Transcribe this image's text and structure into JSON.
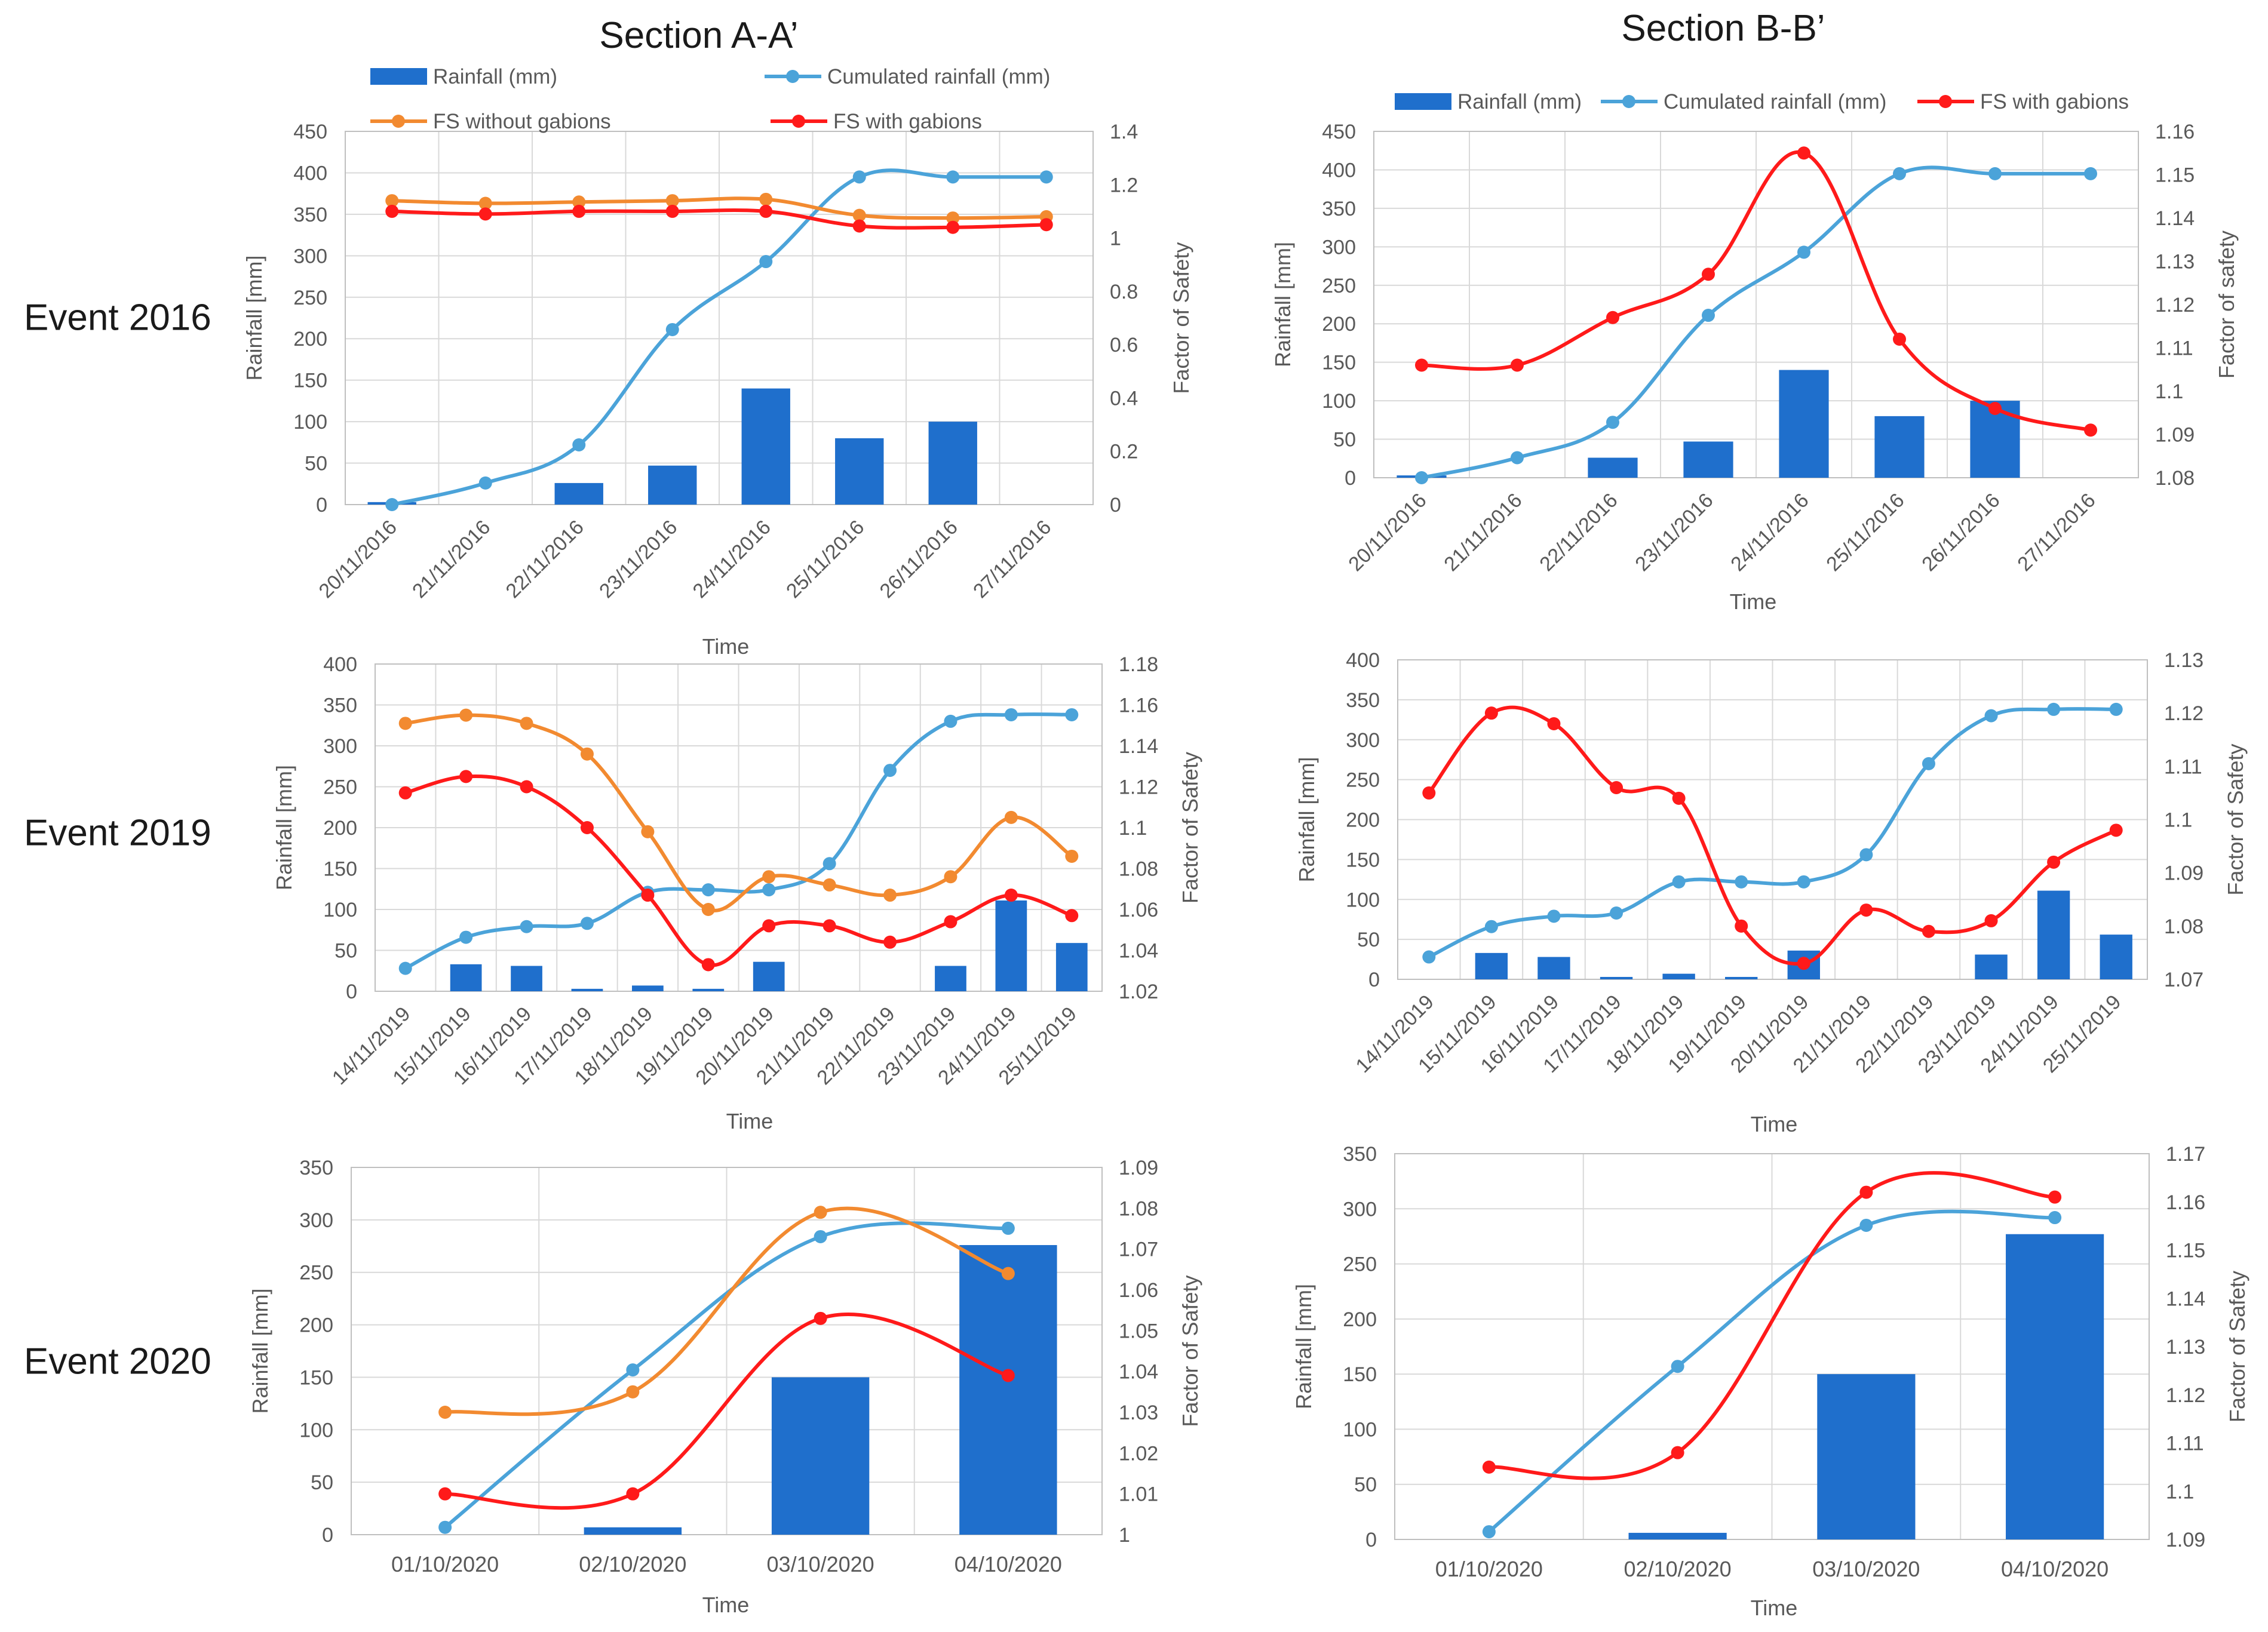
{
  "figure": {
    "section_titles": [
      "Section A-A’",
      "Section B-B’"
    ],
    "event_labels": [
      "Event 2016",
      "Event 2019",
      "Event 2020"
    ]
  },
  "colors": {
    "rainfall": "#1f6fcc",
    "cumulated": "#4ba3d9",
    "fs_without": "#f28a30",
    "fs_with": "#ff1a1a",
    "grid": "#d9d9d9",
    "axis_text": "#595959"
  },
  "legend_labels": {
    "rainfall": "Rainfall (mm)",
    "cumulated": "Cumulated rainfall (mm)",
    "fs_without": "FS without gabions",
    "fs_with": "FS with gabions"
  },
  "chart_data": [
    {
      "id": "A2016",
      "section": "Section A-A’",
      "event": "Event 2016",
      "type": "bar",
      "categories": [
        "20/11/2016",
        "21/11/2016",
        "22/11/2016",
        "23/11/2016",
        "24/11/2016",
        "25/11/2016",
        "26/11/2016",
        "27/11/2016"
      ],
      "xlabel": "Time",
      "ylabel": "Rainfall [mm]",
      "y2label": "Factor of Safety",
      "ylim": [
        0,
        450
      ],
      "y2lim": [
        0,
        1.4
      ],
      "grid": true,
      "legend": "top",
      "series": [
        {
          "name": "Rainfall (mm)",
          "kind": "bar",
          "axis": "left",
          "values": [
            3,
            0,
            26,
            47,
            140,
            80,
            100,
            0
          ]
        },
        {
          "name": "Cumulated rainfall (mm)",
          "kind": "line",
          "axis": "left",
          "values": [
            0,
            26,
            72,
            211,
            293,
            395,
            395,
            395
          ]
        },
        {
          "name": "FS without gabions",
          "kind": "line",
          "axis": "right",
          "values": [
            1.14,
            1.13,
            1.135,
            1.14,
            1.145,
            1.085,
            1.075,
            1.08
          ]
        },
        {
          "name": "FS with gabions",
          "kind": "line",
          "axis": "right",
          "values": [
            1.1,
            1.09,
            1.1,
            1.1,
            1.1,
            1.045,
            1.04,
            1.05
          ]
        }
      ]
    },
    {
      "id": "B2016",
      "section": "Section B-B’",
      "event": "Event 2016",
      "type": "bar",
      "categories": [
        "20/11/2016",
        "21/11/2016",
        "22/11/2016",
        "23/11/2016",
        "24/11/2016",
        "25/11/2016",
        "26/11/2016",
        "27/11/2016"
      ],
      "xlabel": "Time",
      "ylabel": "Rainfall [mm]",
      "y2label": "Factor of safety",
      "ylim": [
        0,
        450
      ],
      "y2lim": [
        1.08,
        1.16
      ],
      "grid": true,
      "legend": "top",
      "series": [
        {
          "name": "Rainfall (mm)",
          "kind": "bar",
          "axis": "left",
          "values": [
            3,
            0,
            26,
            47,
            140,
            80,
            100,
            0
          ]
        },
        {
          "name": "Cumulated rainfall (mm)",
          "kind": "line",
          "axis": "left",
          "values": [
            0,
            26,
            72,
            211,
            293,
            395,
            395,
            395
          ]
        },
        {
          "name": "FS with gabions",
          "kind": "line",
          "axis": "right",
          "values": [
            1.106,
            1.106,
            1.117,
            1.127,
            1.155,
            1.112,
            1.096,
            1.091
          ]
        }
      ]
    },
    {
      "id": "A2019",
      "section": "Section A-A’",
      "event": "Event 2019",
      "type": "bar",
      "categories": [
        "14/11/2019",
        "15/11/2019",
        "16/11/2019",
        "17/11/2019",
        "18/11/2019",
        "19/11/2019",
        "20/11/2019",
        "21/11/2019",
        "22/11/2019",
        "23/11/2019",
        "24/11/2019",
        "25/11/2019"
      ],
      "xlabel": "Time",
      "ylabel": "Rainfall [mm]",
      "y2label": "Factor of Safety",
      "ylim": [
        0,
        400
      ],
      "y2lim": [
        1.02,
        1.18
      ],
      "grid": true,
      "series": [
        {
          "name": "Rainfall (mm)",
          "kind": "bar",
          "axis": "left",
          "values": [
            0,
            33,
            31,
            3,
            7,
            3,
            36,
            0,
            0,
            31,
            111,
            59
          ]
        },
        {
          "name": "Cumulated rainfall (mm)",
          "kind": "line",
          "axis": "left",
          "values": [
            28,
            66,
            79,
            83,
            121,
            124,
            124,
            156,
            270,
            330,
            338,
            338
          ]
        },
        {
          "name": "FS without gabions",
          "kind": "line",
          "axis": "right",
          "values": [
            1.151,
            1.155,
            1.151,
            1.136,
            1.098,
            1.06,
            1.076,
            1.072,
            1.067,
            1.076,
            1.105,
            1.086
          ]
        },
        {
          "name": "FS with gabions",
          "kind": "line",
          "axis": "right",
          "values": [
            1.117,
            1.125,
            1.12,
            1.1,
            1.067,
            1.033,
            1.052,
            1.052,
            1.044,
            1.054,
            1.067,
            1.057
          ]
        }
      ]
    },
    {
      "id": "B2019",
      "section": "Section B-B’",
      "event": "Event 2019",
      "type": "bar",
      "categories": [
        "14/11/2019",
        "15/11/2019",
        "16/11/2019",
        "17/11/2019",
        "18/11/2019",
        "19/11/2019",
        "20/11/2019",
        "21/11/2019",
        "22/11/2019",
        "23/11/2019",
        "24/11/2019",
        "25/11/2019"
      ],
      "xlabel": "Time",
      "ylabel": "Rainfall [mm]",
      "y2label": "Factor of Safety",
      "ylim": [
        0,
        400
      ],
      "y2lim": [
        1.07,
        1.13
      ],
      "grid": true,
      "series": [
        {
          "name": "Rainfall (mm)",
          "kind": "bar",
          "axis": "left",
          "values": [
            0,
            33,
            28,
            3,
            7,
            3,
            36,
            0,
            0,
            31,
            111,
            56
          ]
        },
        {
          "name": "Cumulated rainfall (mm)",
          "kind": "line",
          "axis": "left",
          "values": [
            28,
            66,
            79,
            83,
            122,
            122,
            122,
            156,
            270,
            330,
            338,
            338
          ]
        },
        {
          "name": "FS with gabions",
          "kind": "line",
          "axis": "right",
          "values": [
            1.105,
            1.12,
            1.118,
            1.106,
            1.104,
            1.08,
            1.073,
            1.083,
            1.079,
            1.081,
            1.092,
            1.098
          ]
        }
      ]
    },
    {
      "id": "A2020",
      "section": "Section A-A’",
      "event": "Event 2020",
      "type": "bar",
      "categories": [
        "01/10/2020",
        "02/10/2020",
        "03/10/2020",
        "04/10/2020"
      ],
      "xlabel": "Time",
      "ylabel": "Rainfall [mm]",
      "y2label": "Factor of Safety",
      "ylim": [
        0,
        350
      ],
      "y2lim": [
        1.0,
        1.09
      ],
      "grid": true,
      "series": [
        {
          "name": "Rainfall (mm)",
          "kind": "bar",
          "axis": "left",
          "values": [
            0,
            7,
            150,
            276
          ]
        },
        {
          "name": "Cumulated rainfall (mm)",
          "kind": "line",
          "axis": "left",
          "values": [
            7,
            157,
            284,
            292
          ]
        },
        {
          "name": "FS without gabions",
          "kind": "line",
          "axis": "right",
          "values": [
            1.03,
            1.035,
            1.079,
            1.064
          ]
        },
        {
          "name": "FS with gabions",
          "kind": "line",
          "axis": "right",
          "values": [
            1.01,
            1.01,
            1.053,
            1.039
          ]
        }
      ]
    },
    {
      "id": "B2020",
      "section": "Section B-B’",
      "event": "Event 2020",
      "type": "bar",
      "categories": [
        "01/10/2020",
        "02/10/2020",
        "03/10/2020",
        "04/10/2020"
      ],
      "xlabel": "Time",
      "ylabel": "Rainfall [mm]",
      "y2label": "Factor of Safety",
      "ylim": [
        0,
        350
      ],
      "y2lim": [
        1.09,
        1.17
      ],
      "grid": true,
      "series": [
        {
          "name": "Rainfall (mm)",
          "kind": "bar",
          "axis": "left",
          "values": [
            0,
            6,
            150,
            277
          ]
        },
        {
          "name": "Cumulated rainfall (mm)",
          "kind": "line",
          "axis": "left",
          "values": [
            7,
            157,
            285,
            292
          ]
        },
        {
          "name": "FS with gabions",
          "kind": "line",
          "axis": "right",
          "values": [
            1.105,
            1.108,
            1.162,
            1.161
          ]
        }
      ]
    }
  ]
}
